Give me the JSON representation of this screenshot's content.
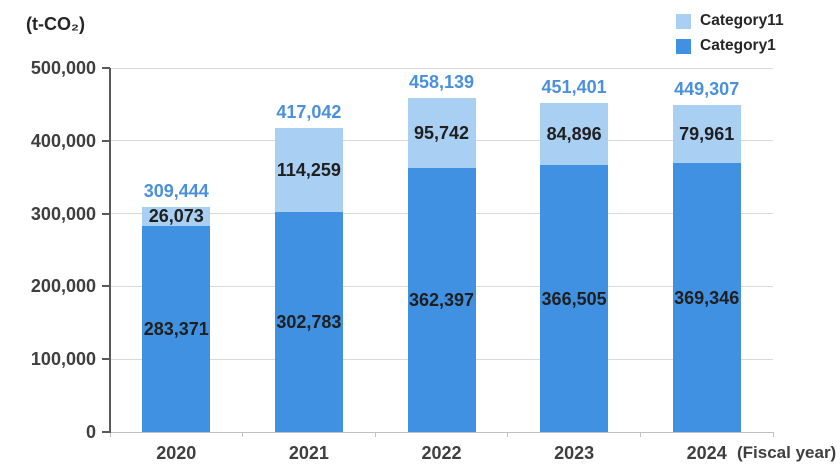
{
  "header": {
    "unit_label": "(t-CO₂)"
  },
  "axis": {
    "y_ticks": [
      0,
      100000,
      200000,
      300000,
      400000,
      500000
    ],
    "x_label_suffix": "(Fiscal year)"
  },
  "legend": [
    {
      "label": "Category11",
      "color": "#A9CFF3"
    },
    {
      "label": "Category1",
      "color": "#4191E2"
    }
  ],
  "chart_data": {
    "type": "bar",
    "stacked": true,
    "title": "(t-CO₂)",
    "categories": [
      "2020",
      "2021",
      "2022",
      "2023",
      "2024"
    ],
    "series": [
      {
        "name": "Category1",
        "color": "#4191E2",
        "values": [
          283371,
          302783,
          362397,
          366505,
          369346
        ]
      },
      {
        "name": "Category11",
        "color": "#A9CFF3",
        "values": [
          26073,
          114259,
          95742,
          84896,
          79961
        ]
      }
    ],
    "totals": [
      309444,
      417042,
      458139,
      451401,
      449307
    ],
    "xlabel": "(Fiscal year)",
    "ylabel": "(t-CO₂)",
    "ylim": [
      0,
      500000
    ],
    "ytick_interval": 100000,
    "grid": true,
    "legend_position": "top-right",
    "legend_order": [
      "Category11",
      "Category1"
    ]
  },
  "colors": {
    "category1": "#4191E2",
    "category11": "#A9CFF3",
    "total_label": "#4A90DC",
    "data_label": "#1F1F1F",
    "axis_text": "#3F3F3F",
    "legend_text": "#262626",
    "gridline": "#D9D9D9",
    "axis_line": "#595959",
    "baseline": "#C0C0C0"
  }
}
